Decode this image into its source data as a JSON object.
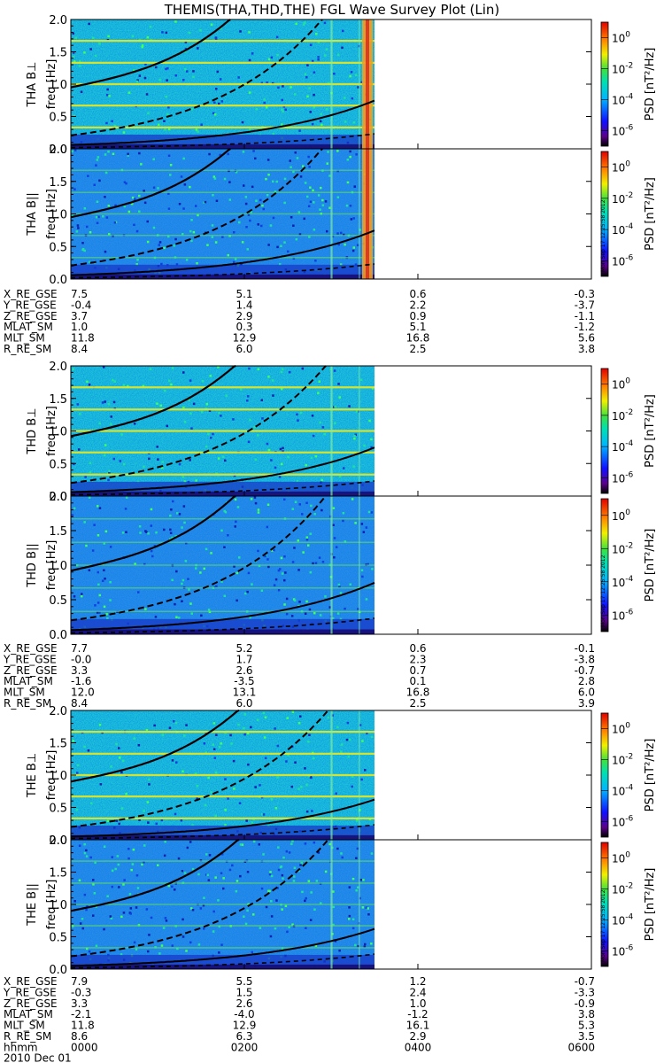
{
  "title": "THEMIS(THA,THD,THE) FGL Wave Survey Plot (Lin)",
  "colors": {
    "panel_bg": "#ffffff",
    "line": "#000000"
  },
  "chart_data": {
    "type": "heatmap",
    "xlim": [
      0,
      6
    ],
    "xticks": [
      "0000",
      "0200",
      "0400",
      "0600"
    ],
    "xunit_label": "hhmm",
    "date_label": "2010 Dec 01",
    "ylim": [
      0,
      2
    ],
    "yticks": [
      "0.0",
      "0.5",
      "1.0",
      "1.5",
      "2.0"
    ],
    "colorbar": {
      "label": "PSD [nT²/Hz]",
      "scale": "log",
      "range": [
        1e-07,
        10.0
      ],
      "ticks": [
        {
          "exp": 0
        },
        {
          "exp": -2
        },
        {
          "exp": -4
        },
        {
          "exp": -6
        }
      ]
    },
    "stamp": "Mon Sep 17 12:25:58 2012",
    "probes": [
      {
        "id": "THA",
        "data_end": 3.5,
        "panels": [
          {
            "ylabel": "THA B⊥",
            "unit": "freq [Hz]",
            "kind": "perp"
          },
          {
            "ylabel": "THA B||",
            "unit": "freq [Hz]",
            "kind": "par"
          }
        ],
        "curve_params": {
          "a": 0.65,
          "b": 0.95,
          "c": 0.06,
          "d": 1.5
        },
        "ephem": {
          "rows": [
            "X_RE_GSE",
            "Y_RE_GSE",
            "Z_RE_GSE",
            "MLAT_SM",
            "MLT_SM",
            "R_RE_SM"
          ],
          "values": [
            [
              "7.5",
              "5.1",
              "0.6",
              "-0.3"
            ],
            [
              "-0.4",
              "1.4",
              "2.2",
              "-3.7"
            ],
            [
              "3.7",
              "2.9",
              "0.9",
              "-1.1"
            ],
            [
              "1.0",
              "0.3",
              "5.1",
              "-1.2"
            ],
            [
              "11.8",
              "12.9",
              "16.8",
              "5.6"
            ],
            [
              "8.4",
              "6.0",
              "2.5",
              "3.8"
            ]
          ]
        }
      },
      {
        "id": "THD",
        "data_end": 3.5,
        "panels": [
          {
            "ylabel": "THD B⊥",
            "unit": "freq [Hz]",
            "kind": "perp"
          },
          {
            "ylabel": "THD B||",
            "unit": "freq [Hz]",
            "kind": "par"
          }
        ],
        "curve_params": {
          "a": 0.63,
          "b": 0.92,
          "c": 0.06,
          "d": 1.5
        },
        "ephem": {
          "rows": [
            "X_RE_GSE",
            "Y_RE_GSE",
            "Z_RE_GSE",
            "MLAT_SM",
            "MLT_SM",
            "R_RE_SM"
          ],
          "values": [
            [
              "7.7",
              "5.2",
              "0.6",
              "-0.1"
            ],
            [
              "-0.0",
              "1.7",
              "2.3",
              "-3.8"
            ],
            [
              "3.3",
              "2.6",
              "0.7",
              "-0.7"
            ],
            [
              "-1.6",
              "-3.5",
              "0.1",
              "2.8"
            ],
            [
              "12.0",
              "13.1",
              "16.8",
              "6.0"
            ],
            [
              "8.4",
              "6.0",
              "2.5",
              "3.9"
            ]
          ]
        }
      },
      {
        "id": "THE",
        "data_end": 3.5,
        "panels": [
          {
            "ylabel": "THE B⊥",
            "unit": "freq [Hz]",
            "kind": "perp"
          },
          {
            "ylabel": "THE B||",
            "unit": "freq [Hz]",
            "kind": "par"
          }
        ],
        "curve_params": {
          "a": 0.6,
          "b": 0.9,
          "c": 0.05,
          "d": 1.5
        },
        "ephem": {
          "rows": [
            "X_RE_GSE",
            "Y_RE_GSE",
            "Z_RE_GSE",
            "MLAT_SM",
            "MLT_SM",
            "R_RE_SM"
          ],
          "values": [
            [
              "7.9",
              "5.5",
              "1.2",
              "-0.7"
            ],
            [
              "-0.3",
              "1.5",
              "2.4",
              "-3.3"
            ],
            [
              "3.3",
              "2.6",
              "1.0",
              "-0.9"
            ],
            [
              "-2.1",
              "-4.0",
              "-1.2",
              "3.8"
            ],
            [
              "11.8",
              "12.9",
              "16.1",
              "5.3"
            ],
            [
              "8.6",
              "6.3",
              "2.9",
              "3.5"
            ]
          ]
        }
      }
    ]
  }
}
